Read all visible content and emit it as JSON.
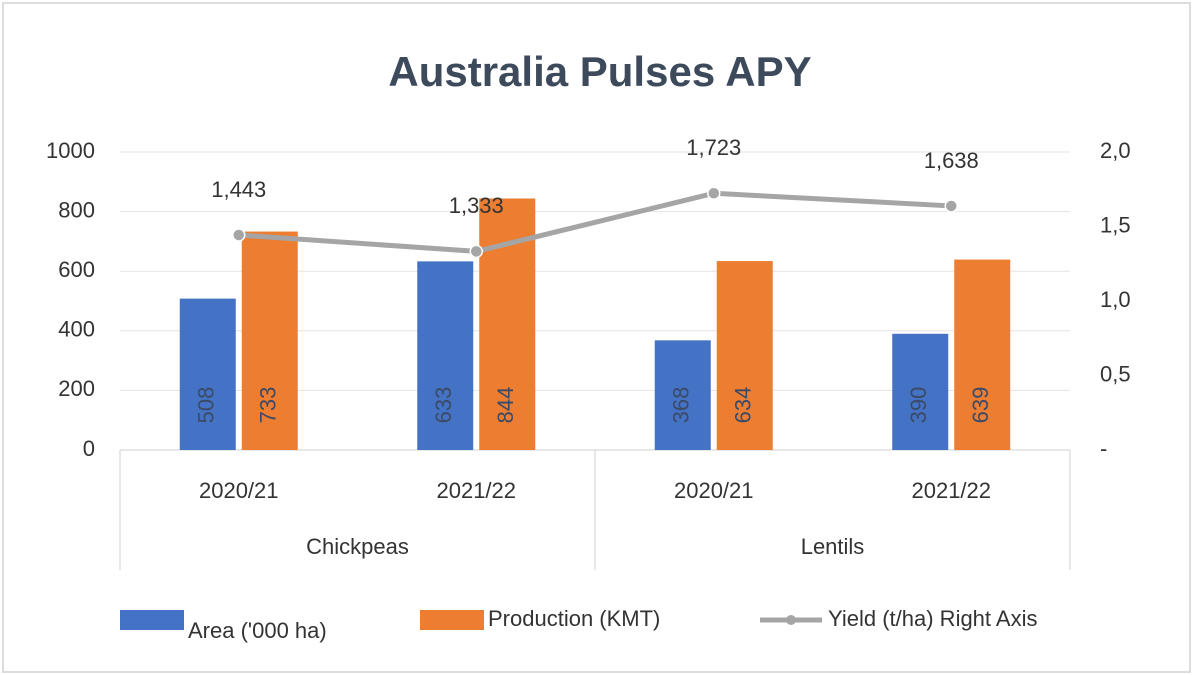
{
  "chart_data": {
    "type": "bar",
    "title": "Australia Pulses APY",
    "categories": [
      "2020/21",
      "2021/22",
      "2020/21",
      "2021/22"
    ],
    "groups": [
      "Chickpeas",
      "Lentils"
    ],
    "series": [
      {
        "name": "Area ('000 ha)",
        "color": "#4472c4",
        "values": [
          508,
          633,
          368,
          390
        ]
      },
      {
        "name": "Production (KMT)",
        "color": "#ed7d31",
        "values": [
          733,
          844,
          634,
          639
        ]
      },
      {
        "name": "Yield (t/ha) Right Axis",
        "color": "#a5a5a5",
        "type": "line",
        "axis": "y2",
        "values": [
          1.443,
          1.333,
          1.723,
          1.638
        ],
        "value_labels": [
          "1,443",
          "1,333",
          "1,723",
          "1,638"
        ]
      }
    ],
    "ylim": [
      0,
      1000
    ],
    "yticks": [
      0,
      200,
      400,
      600,
      800,
      1000
    ],
    "y2lim": [
      0,
      2
    ],
    "y2ticks": [
      {
        "value": 0,
        "label": "-"
      },
      {
        "value": 0.5,
        "label": "0,5"
      },
      {
        "value": 1,
        "label": "1,0"
      },
      {
        "value": 1.5,
        "label": "1,5"
      },
      {
        "value": 2,
        "label": "2,0"
      }
    ],
    "grid": true,
    "legend": "bottom"
  }
}
